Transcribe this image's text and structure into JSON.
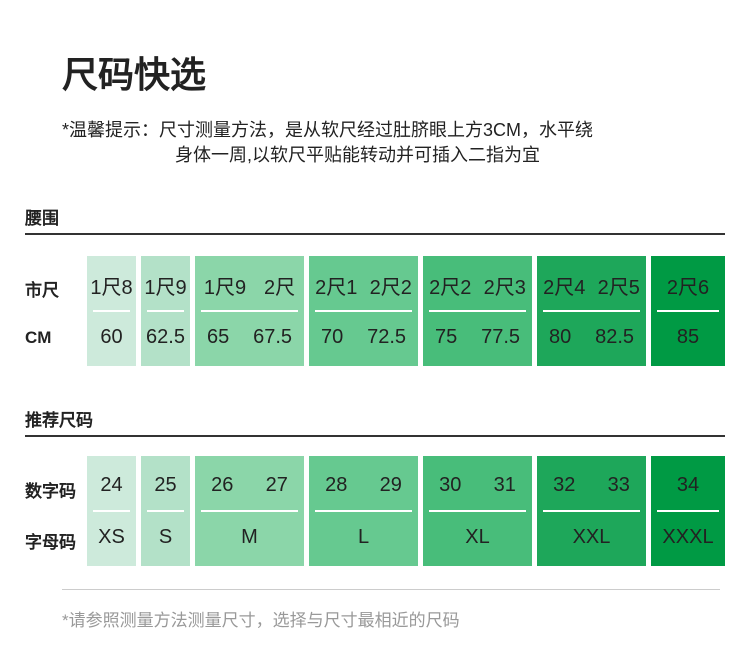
{
  "title": "尺码快选",
  "tip": {
    "line1": "*温馨提示：尺寸测量方法，是从软尺经过肚脐眼上方3CM，水平绕",
    "line2": "身体一周,以软尺平贴能转动并可插入二指为宜"
  },
  "colors": [
    "#cdeadb",
    "#b3e1c8",
    "#8bd6a9",
    "#66c990",
    "#48bd7a",
    "#1ea75a",
    "#009a44"
  ],
  "waist": {
    "heading": "腰围",
    "row1_label": "市尺",
    "row2_label": "CM",
    "columns": [
      {
        "top": [
          "1尺8"
        ],
        "bottom": [
          "60"
        ]
      },
      {
        "top": [
          "1尺9"
        ],
        "bottom": [
          "62.5"
        ]
      },
      {
        "top": [
          "1尺9",
          "2尺"
        ],
        "bottom": [
          "65",
          "67.5"
        ]
      },
      {
        "top": [
          "2尺1",
          "2尺2"
        ],
        "bottom": [
          "70",
          "72.5"
        ]
      },
      {
        "top": [
          "2尺2",
          "2尺3"
        ],
        "bottom": [
          "75",
          "77.5"
        ]
      },
      {
        "top": [
          "2尺4",
          "2尺5"
        ],
        "bottom": [
          "80",
          "82.5"
        ]
      },
      {
        "top": [
          "2尺6"
        ],
        "bottom": [
          "85"
        ]
      }
    ]
  },
  "recommend": {
    "heading": "推荐尺码",
    "row1_label": "数字码",
    "row2_label": "字母码",
    "columns": [
      {
        "top": [
          "24"
        ],
        "bottom": [
          "XS"
        ]
      },
      {
        "top": [
          "25"
        ],
        "bottom": [
          "S"
        ]
      },
      {
        "top": [
          "26",
          "27"
        ],
        "bottom": [
          "M"
        ]
      },
      {
        "top": [
          "28",
          "29"
        ],
        "bottom": [
          "L"
        ]
      },
      {
        "top": [
          "30",
          "31"
        ],
        "bottom": [
          "XL"
        ]
      },
      {
        "top": [
          "32",
          "33"
        ],
        "bottom": [
          "XXL"
        ]
      },
      {
        "top": [
          "34"
        ],
        "bottom": [
          "XXXL"
        ]
      }
    ]
  },
  "footer": "*请参照测量方法测量尺寸，选择与尺寸最相近的尺码"
}
